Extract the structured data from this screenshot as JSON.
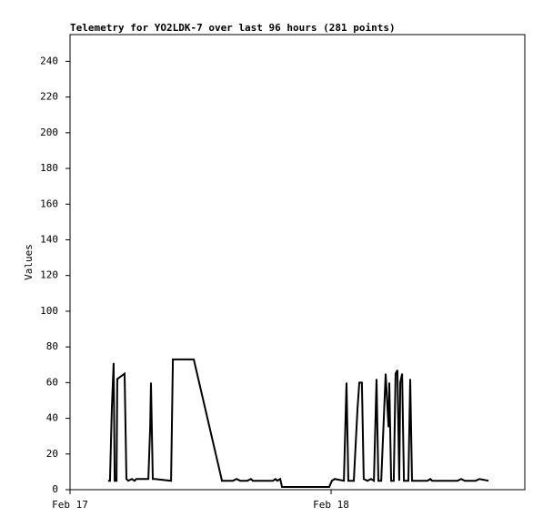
{
  "chart_data": {
    "type": "line",
    "title": "Telemetry for YO2LDK-7 over last 96 hours (281 points)",
    "y_label": "Values",
    "x": [
      0.146,
      0.153,
      0.16,
      0.167,
      0.171,
      0.178,
      0.181,
      0.209,
      0.216,
      0.223,
      0.237,
      0.247,
      0.254,
      0.3,
      0.307,
      0.31,
      0.317,
      0.324,
      0.387,
      0.394,
      0.474,
      0.582,
      0.624,
      0.638,
      0.652,
      0.679,
      0.693,
      0.7,
      0.777,
      0.787,
      0.794,
      0.805,
      0.812,
      0.993,
      1.003,
      1.014,
      1.049,
      1.059,
      1.066,
      1.087,
      1.101,
      1.108,
      1.118,
      1.125,
      1.139,
      1.153,
      1.164,
      1.174,
      1.181,
      1.192,
      1.209,
      1.22,
      1.223,
      1.23,
      1.24,
      1.247,
      1.254,
      1.261,
      1.265,
      1.272,
      1.279,
      1.296,
      1.303,
      1.31,
      1.369,
      1.38,
      1.387,
      1.484,
      1.498,
      1.512,
      1.554,
      1.568,
      1.603
    ],
    "series": [
      {
        "color": "#000000",
        "values": [
          5,
          5,
          45,
          71,
          5,
          5,
          62,
          65,
          6,
          5,
          6,
          5,
          6,
          6,
          35,
          60,
          6,
          6,
          5,
          73,
          73,
          5,
          5,
          6,
          5,
          5,
          6,
          5,
          5,
          6,
          5,
          6,
          1.5,
          1.5,
          5,
          6,
          5,
          60,
          5,
          5,
          45,
          60,
          60,
          6,
          5,
          6,
          5,
          62,
          5,
          5,
          65,
          35,
          60,
          5,
          5,
          65,
          67,
          5,
          60,
          65,
          5,
          5,
          62,
          5,
          5,
          6,
          5,
          5,
          6,
          5,
          5,
          6,
          5
        ]
      }
    ],
    "xlim": [
      0,
      1.742
    ],
    "xticks": [
      {
        "value": 0,
        "label": "Feb 17"
      },
      {
        "value": 1,
        "label": "Feb 18"
      }
    ],
    "ylim": [
      0,
      255
    ],
    "yticks": [
      0,
      20,
      40,
      60,
      80,
      100,
      120,
      140,
      160,
      180,
      200,
      220,
      240
    ]
  }
}
